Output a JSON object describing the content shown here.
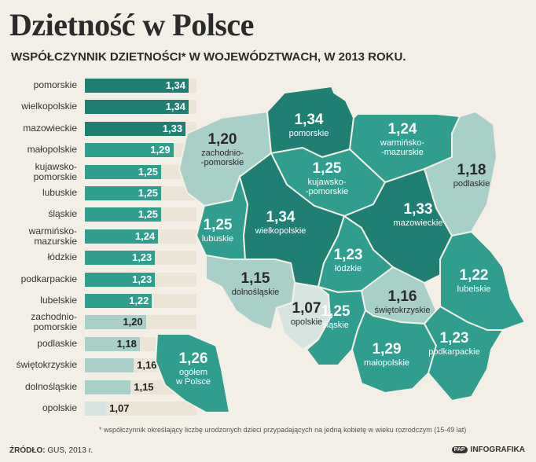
{
  "title": "Dzietność w Polsce",
  "subtitle": "WSPÓŁCZYNNIK DZIETNOŚCI* W WOJEWÓDZTWACH, W 2013 ROKU.",
  "chart_data": {
    "type": "bar",
    "categories": [
      "pomorskie",
      "wielkopolskie",
      "mazowieckie",
      "małopolskie",
      "kujawsko-\npomorskie",
      "lubuskie",
      "śląskie",
      "warmińsko-\nmazurskie",
      "łódzkie",
      "podkarpackie",
      "lubelskie",
      "zachodnio-\npomorskie",
      "podlaskie",
      "świętokrzyskie",
      "dolnośląskie",
      "opolskie"
    ],
    "values": [
      1.34,
      1.34,
      1.33,
      1.29,
      1.25,
      1.25,
      1.25,
      1.24,
      1.23,
      1.23,
      1.22,
      1.2,
      1.18,
      1.16,
      1.15,
      1.07
    ],
    "value_labels": [
      "1,34",
      "1,34",
      "1,33",
      "1,29",
      "1,25",
      "1,25",
      "1,25",
      "1,24",
      "1,23",
      "1,23",
      "1,22",
      "1,20",
      "1,18",
      "1,16",
      "1,15",
      "1,07"
    ]
  },
  "map": {
    "regions": [
      {
        "id": "pomorskie",
        "value": "1,34",
        "name": "pomorskie"
      },
      {
        "id": "zachodniopomorskie",
        "value": "1,20",
        "name": "zachodnio-\n-pomorskie"
      },
      {
        "id": "warminskomazurskie",
        "value": "1,24",
        "name": "warmińsko-\n-mazurskie"
      },
      {
        "id": "podlaskie",
        "value": "1,18",
        "name": "podlaskie"
      },
      {
        "id": "kujawskopomorskie",
        "value": "1,25",
        "name": "kujawsko-\n-pomorskie"
      },
      {
        "id": "lubuskie",
        "value": "1,25",
        "name": "lubuskie"
      },
      {
        "id": "wielkopolskie",
        "value": "1,34",
        "name": "wielkopolskie"
      },
      {
        "id": "mazowieckie",
        "value": "1,33",
        "name": "mazowieckie"
      },
      {
        "id": "lodzkie",
        "value": "1,23",
        "name": "łódzkie"
      },
      {
        "id": "lubelskie",
        "value": "1,22",
        "name": "lubelskie"
      },
      {
        "id": "dolnoslaskie",
        "value": "1,15",
        "name": "dolnośląskie"
      },
      {
        "id": "opolskie",
        "value": "1,07",
        "name": "opolskie"
      },
      {
        "id": "slaskie",
        "value": "1,25",
        "name": "śląskie"
      },
      {
        "id": "swietokrzyskie",
        "value": "1,16",
        "name": "świętokrzyskie"
      },
      {
        "id": "malopolskie",
        "value": "1,29",
        "name": "małopolskie"
      },
      {
        "id": "podkarpackie",
        "value": "1,23",
        "name": "podkarpackie"
      }
    ],
    "total": {
      "value": "1,26",
      "name": "ogółem\nw Polsce"
    }
  },
  "colors": {
    "dark_teal": "#1f7f73",
    "teal": "#2f9e8f",
    "mid": "#6fb8ad",
    "light": "#a8cfc8",
    "pale": "#d6e5e1"
  },
  "footnote": "* współczynnik określający liczbę urodzonych dzieci przypadających na jedną kobietę w wieku rozrodczym (15-49 lat)",
  "source_label": "ŹRÓDŁO:",
  "source_value": " GUS, 2013 r.",
  "brand_icon": "PAP",
  "brand": "INFOGRAFIKA"
}
